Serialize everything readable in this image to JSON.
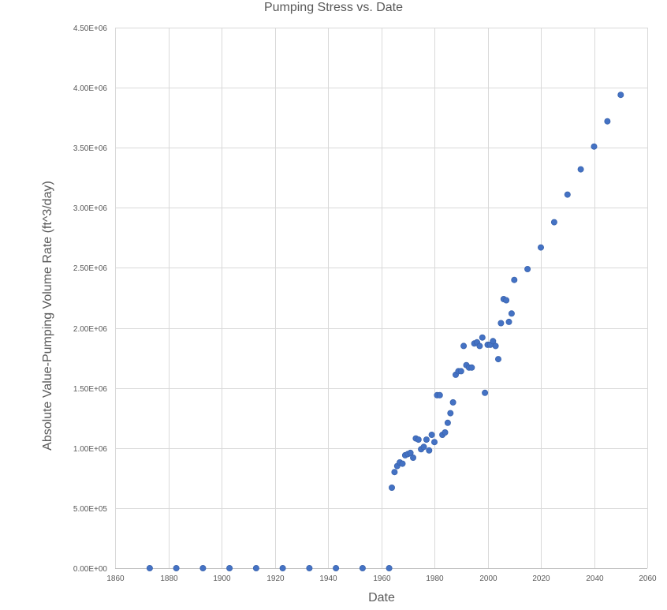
{
  "chart_data": {
    "type": "scatter",
    "title": "Pumping Stress vs. Date",
    "xlabel": "Date",
    "ylabel": "Absolute Value-Pumping Volume Rate (ft^3/day)",
    "xlim": [
      1860,
      2060
    ],
    "ylim": [
      0,
      4500000
    ],
    "x_ticks": [
      "1860",
      "1880",
      "1900",
      "1920",
      "1940",
      "1960",
      "1980",
      "2000",
      "2020",
      "2040",
      "2060"
    ],
    "y_ticks": [
      "0.00E+00",
      "5.00E+05",
      "1.00E+06",
      "1.50E+06",
      "2.00E+06",
      "2.50E+06",
      "3.00E+06",
      "3.50E+06",
      "4.00E+06",
      "4.50E+06"
    ],
    "grid": true,
    "marker_color": "#4472c4",
    "series": [
      {
        "x": [
          1873,
          1883,
          1893,
          1903,
          1913,
          1923,
          1933,
          1943,
          1953,
          1963,
          1964,
          1965,
          1966,
          1967,
          1968,
          1969,
          1970,
          1971,
          1972,
          1973,
          1974,
          1975,
          1976,
          1977,
          1978,
          1979,
          1980,
          1981,
          1982,
          1983,
          1984,
          1985,
          1986,
          1987,
          1988,
          1989,
          1990,
          1991,
          1992,
          1993,
          1994,
          1995,
          1996,
          1997,
          1998,
          1999,
          2000,
          2001,
          2002,
          2003,
          2004,
          2005,
          2006,
          2007,
          2008,
          2009,
          2010,
          2015,
          2020,
          2025,
          2030,
          2035,
          2040,
          2045,
          2050
        ],
        "y": [
          0,
          0,
          0,
          0,
          0,
          0,
          0,
          0,
          0,
          0,
          670000,
          800000,
          850000,
          880000,
          870000,
          940000,
          950000,
          960000,
          920000,
          1080000,
          1070000,
          990000,
          1010000,
          1070000,
          980000,
          1110000,
          1050000,
          1440000,
          1440000,
          1110000,
          1130000,
          1210000,
          1290000,
          1380000,
          1610000,
          1640000,
          1640000,
          1850000,
          1690000,
          1670000,
          1670000,
          1870000,
          1880000,
          1850000,
          1920000,
          1460000,
          1860000,
          1860000,
          1890000,
          1850000,
          1740000,
          2040000,
          2240000,
          2230000,
          2050000,
          2120000,
          2400000,
          2490000,
          2670000,
          2880000,
          3110000,
          3320000,
          3510000,
          3720000,
          3940000
        ]
      }
    ]
  }
}
